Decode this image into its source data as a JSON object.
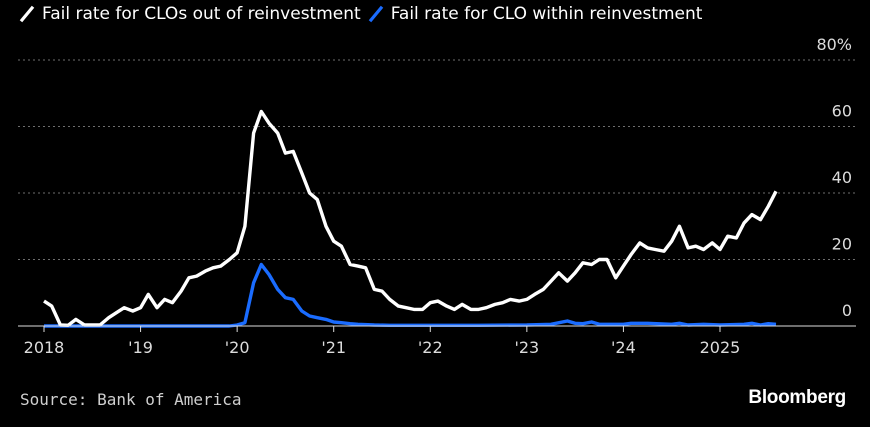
{
  "chart_data": {
    "type": "line",
    "title": "",
    "xlabel": "",
    "ylabel": "",
    "y_unit_suffix": "%",
    "ylim": [
      0,
      80
    ],
    "yticks": [
      0,
      20,
      40,
      60,
      80
    ],
    "xlim": [
      2018.0,
      2025.95
    ],
    "xticks": [
      {
        "value": 2018.0,
        "label": "2018"
      },
      {
        "value": 2019.0,
        "label": "'19"
      },
      {
        "value": 2020.0,
        "label": "'20"
      },
      {
        "value": 2021.0,
        "label": "'21"
      },
      {
        "value": 2022.0,
        "label": "'22"
      },
      {
        "value": 2023.0,
        "label": "'23"
      },
      {
        "value": 2024.0,
        "label": "'24"
      },
      {
        "value": 2025.0,
        "label": "2025"
      }
    ],
    "grid": true,
    "legend_position": "top-left",
    "series": [
      {
        "name": "Fail rate for CLOs out of reinvestment",
        "color": "#ffffff",
        "points": [
          [
            2018.0,
            7.5
          ],
          [
            2018.08,
            6
          ],
          [
            2018.17,
            0.3
          ],
          [
            2018.25,
            0.2
          ],
          [
            2018.33,
            2
          ],
          [
            2018.42,
            0.3
          ],
          [
            2018.5,
            0.3
          ],
          [
            2018.58,
            0.3
          ],
          [
            2018.67,
            2.5
          ],
          [
            2018.75,
            4
          ],
          [
            2018.83,
            5.5
          ],
          [
            2018.92,
            4.5
          ],
          [
            2019.0,
            5.5
          ],
          [
            2019.08,
            9.5
          ],
          [
            2019.17,
            5.5
          ],
          [
            2019.25,
            8
          ],
          [
            2019.33,
            7
          ],
          [
            2019.42,
            10.5
          ],
          [
            2019.5,
            14.5
          ],
          [
            2019.58,
            15
          ],
          [
            2019.67,
            16.5
          ],
          [
            2019.75,
            17.5
          ],
          [
            2019.83,
            18
          ],
          [
            2019.92,
            20
          ],
          [
            2020.0,
            22
          ],
          [
            2020.08,
            30
          ],
          [
            2020.17,
            58
          ],
          [
            2020.25,
            64.5
          ],
          [
            2020.33,
            61
          ],
          [
            2020.42,
            58
          ],
          [
            2020.5,
            52
          ],
          [
            2020.58,
            52.5
          ],
          [
            2020.67,
            46
          ],
          [
            2020.75,
            40
          ],
          [
            2020.83,
            38
          ],
          [
            2020.92,
            30
          ],
          [
            2021.0,
            25.5
          ],
          [
            2021.08,
            24
          ],
          [
            2021.17,
            18.5
          ],
          [
            2021.25,
            18
          ],
          [
            2021.33,
            17.5
          ],
          [
            2021.42,
            11
          ],
          [
            2021.5,
            10.5
          ],
          [
            2021.58,
            8
          ],
          [
            2021.67,
            6
          ],
          [
            2021.75,
            5.5
          ],
          [
            2021.83,
            5
          ],
          [
            2021.92,
            5
          ],
          [
            2022.0,
            7
          ],
          [
            2022.08,
            7.5
          ],
          [
            2022.17,
            6
          ],
          [
            2022.25,
            5
          ],
          [
            2022.33,
            6.5
          ],
          [
            2022.42,
            5
          ],
          [
            2022.5,
            5
          ],
          [
            2022.58,
            5.5
          ],
          [
            2022.67,
            6.5
          ],
          [
            2022.75,
            7
          ],
          [
            2022.83,
            8
          ],
          [
            2022.92,
            7.5
          ],
          [
            2023.0,
            8
          ],
          [
            2023.08,
            9.5
          ],
          [
            2023.17,
            11
          ],
          [
            2023.25,
            13.5
          ],
          [
            2023.33,
            16
          ],
          [
            2023.42,
            13.5
          ],
          [
            2023.5,
            16
          ],
          [
            2023.58,
            19
          ],
          [
            2023.67,
            18.5
          ],
          [
            2023.75,
            20
          ],
          [
            2023.83,
            20
          ],
          [
            2023.92,
            14.5
          ],
          [
            2024.0,
            18
          ],
          [
            2024.08,
            21.5
          ],
          [
            2024.17,
            25
          ],
          [
            2024.25,
            23.5
          ],
          [
            2024.33,
            23
          ],
          [
            2024.42,
            22.5
          ],
          [
            2024.5,
            25.5
          ],
          [
            2024.58,
            30
          ],
          [
            2024.67,
            23.5
          ],
          [
            2024.75,
            24
          ],
          [
            2024.83,
            23
          ],
          [
            2024.92,
            25
          ],
          [
            2025.0,
            23
          ],
          [
            2025.08,
            27
          ],
          [
            2025.17,
            26.5
          ],
          [
            2025.25,
            31
          ],
          [
            2025.33,
            33.5
          ],
          [
            2025.42,
            32
          ],
          [
            2025.5,
            36
          ],
          [
            2025.58,
            40.5
          ]
        ]
      },
      {
        "name": "Fail rate for CLO within reinvestment",
        "color": "#1a6cff",
        "points": [
          [
            2018.0,
            0
          ],
          [
            2018.25,
            0
          ],
          [
            2018.5,
            0
          ],
          [
            2018.75,
            0
          ],
          [
            2019.0,
            0
          ],
          [
            2019.25,
            0
          ],
          [
            2019.5,
            0
          ],
          [
            2019.75,
            0
          ],
          [
            2019.92,
            0
          ],
          [
            2020.0,
            0.3
          ],
          [
            2020.08,
            1
          ],
          [
            2020.17,
            13
          ],
          [
            2020.25,
            18.5
          ],
          [
            2020.33,
            15.5
          ],
          [
            2020.42,
            11
          ],
          [
            2020.5,
            8.5
          ],
          [
            2020.58,
            8
          ],
          [
            2020.67,
            4.5
          ],
          [
            2020.75,
            3
          ],
          [
            2020.83,
            2.5
          ],
          [
            2020.92,
            2
          ],
          [
            2021.0,
            1.2
          ],
          [
            2021.08,
            1
          ],
          [
            2021.17,
            0.7
          ],
          [
            2021.25,
            0.5
          ],
          [
            2021.42,
            0.3
          ],
          [
            2021.58,
            0.2
          ],
          [
            2021.75,
            0.2
          ],
          [
            2022.0,
            0.2
          ],
          [
            2022.5,
            0.2
          ],
          [
            2023.0,
            0.3
          ],
          [
            2023.25,
            0.5
          ],
          [
            2023.42,
            1.5
          ],
          [
            2023.5,
            0.8
          ],
          [
            2023.58,
            0.7
          ],
          [
            2023.67,
            1.2
          ],
          [
            2023.75,
            0.5
          ],
          [
            2024.0,
            0.5
          ],
          [
            2024.08,
            0.8
          ],
          [
            2024.25,
            0.8
          ],
          [
            2024.5,
            0.5
          ],
          [
            2024.58,
            0.8
          ],
          [
            2024.67,
            0.3
          ],
          [
            2024.83,
            0.5
          ],
          [
            2025.0,
            0.3
          ],
          [
            2025.25,
            0.5
          ],
          [
            2025.33,
            0.8
          ],
          [
            2025.42,
            0.3
          ],
          [
            2025.5,
            0.7
          ],
          [
            2025.58,
            0.5
          ]
        ]
      }
    ]
  },
  "footer": {
    "source": "Source: Bank of America",
    "brand": "Bloomberg"
  }
}
